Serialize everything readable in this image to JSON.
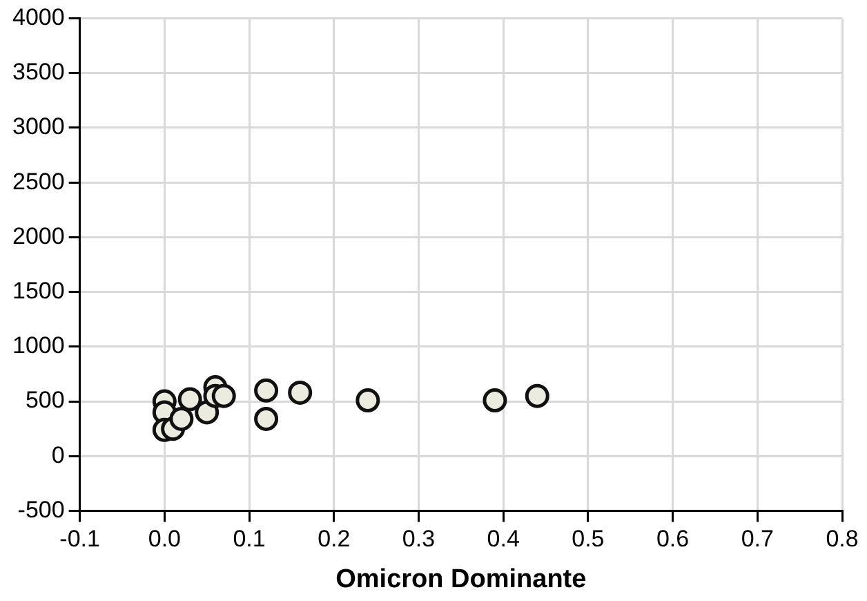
{
  "chart_data": {
    "type": "scatter",
    "xlabel": "Omicron Dominante",
    "x": [
      0.0,
      0.0,
      0.0,
      0.01,
      0.02,
      0.03,
      0.05,
      0.06,
      0.06,
      0.07,
      0.12,
      0.12,
      0.16,
      0.24,
      0.39,
      0.44
    ],
    "values": [
      500,
      400,
      240,
      250,
      340,
      520,
      400,
      630,
      550,
      550,
      600,
      340,
      580,
      510,
      510,
      550
    ],
    "color": "#ebebdf",
    "marker": "circle",
    "grid": true,
    "xlim": [
      -0.1,
      0.8
    ],
    "xticks": [
      {
        "value": -0.1,
        "label": "-0.1"
      },
      {
        "value": 0,
        "label": "0.0"
      },
      {
        "value": 0.1,
        "label": "0.1"
      },
      {
        "value": 0.2,
        "label": "0.2"
      },
      {
        "value": 0.3,
        "label": "0.3"
      },
      {
        "value": 0.4,
        "label": "0.4"
      },
      {
        "value": 0.5,
        "label": "0.5"
      },
      {
        "value": 0.6,
        "label": "0.6"
      },
      {
        "value": 0.7,
        "label": "0.7"
      },
      {
        "value": 0.8,
        "label": "0.8"
      }
    ],
    "ylim": [
      -500,
      4000
    ],
    "yticks": [
      -500,
      0,
      500,
      1000,
      1500,
      2000,
      2500,
      3000,
      3500,
      4000
    ]
  }
}
